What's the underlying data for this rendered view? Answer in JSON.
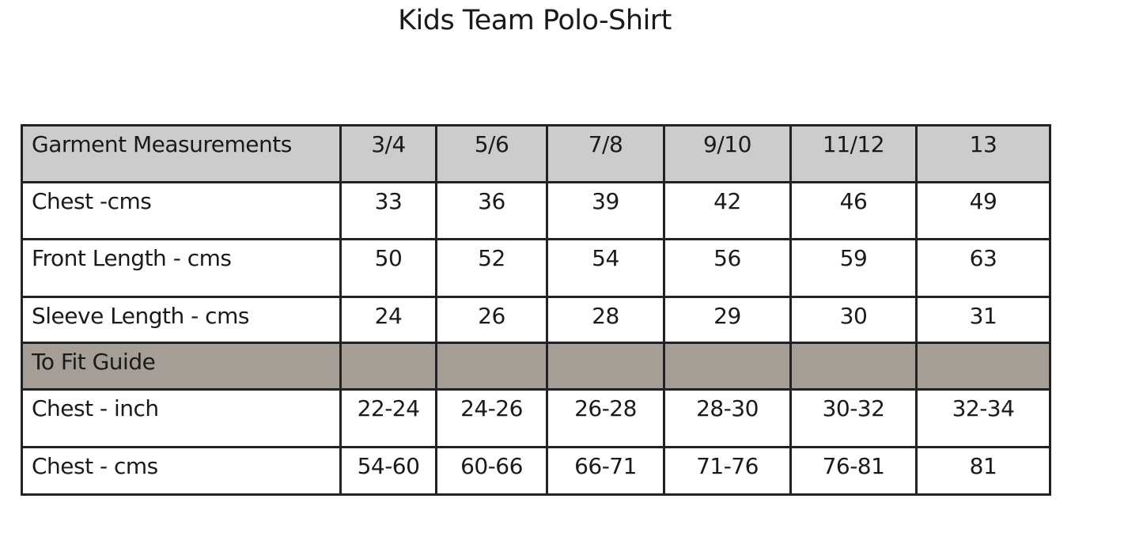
{
  "title": "Kids Team Polo-Shirt",
  "colors": {
    "header_bg": "#cccccc",
    "section_bg": "#a59e97",
    "border": "#222222"
  },
  "table": {
    "header": {
      "label": "Garment Measurements",
      "sizes": [
        "3/4",
        "5/6",
        "7/8",
        "9/10",
        "11/12",
        "13"
      ]
    },
    "rows": [
      {
        "label": "Chest -cms",
        "values": [
          "33",
          "36",
          "39",
          "42",
          "46",
          "49"
        ]
      },
      {
        "label": "Front Length - cms",
        "values": [
          "50",
          "52",
          "54",
          "56",
          "59",
          "63"
        ]
      },
      {
        "label": "Sleeve Length - cms",
        "values": [
          "24",
          "26",
          "28",
          "29",
          "30",
          "31"
        ]
      }
    ],
    "section": {
      "label": "To Fit Guide"
    },
    "fit_rows": [
      {
        "label": "Chest - inch",
        "values": [
          "22-24",
          "24-26",
          "26-28",
          "28-30",
          "30-32",
          "32-34"
        ]
      },
      {
        "label": "Chest - cms",
        "values": [
          "54-60",
          "60-66",
          "66-71",
          "71-76",
          "76-81",
          "81"
        ]
      }
    ]
  }
}
